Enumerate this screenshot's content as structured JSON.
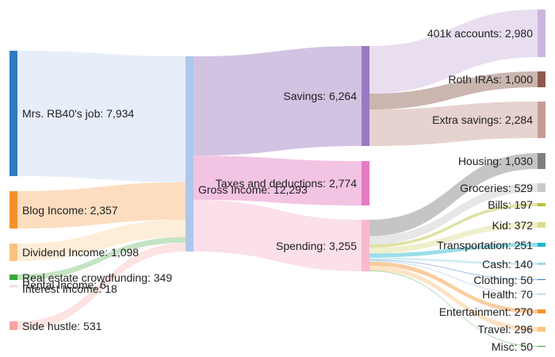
{
  "chart_data": {
    "type": "sankey",
    "title": "",
    "nodes": [
      {
        "id": "job",
        "label": "Mrs. RB40's job",
        "value": 7934,
        "color": "#2f7bbf"
      },
      {
        "id": "blog",
        "label": "Blog Income",
        "value": 2357,
        "color": "#f5902c"
      },
      {
        "id": "div",
        "label": "Dividend Income",
        "value": 1098,
        "color": "#fbc27f"
      },
      {
        "id": "re",
        "label": "Real estate crowdfunding",
        "value": 349,
        "color": "#3aa63a"
      },
      {
        "id": "rent",
        "label": "Rental Income",
        "value": 6,
        "color": "#c6d9f0"
      },
      {
        "id": "int",
        "label": "Interest Income",
        "value": 18,
        "color": "#f4b8c2"
      },
      {
        "id": "side",
        "label": "Side hustle",
        "value": 531,
        "color": "#f9a3a0"
      },
      {
        "id": "gross",
        "label": "Gross Income",
        "value": 12293,
        "color": "#aec7ea"
      },
      {
        "id": "sav",
        "label": "Savings",
        "value": 6264,
        "color": "#9b79c2"
      },
      {
        "id": "tax",
        "label": "Taxes and deductions",
        "value": 2774,
        "color": "#e57bc2"
      },
      {
        "id": "spend",
        "label": "Spending",
        "value": 3255,
        "color": "#f7b9d0"
      },
      {
        "id": "k401",
        "label": "401k accounts",
        "value": 2980,
        "color": "#cbb5dd"
      },
      {
        "id": "roth",
        "label": "Roth IRAs",
        "value": 1000,
        "color": "#8c5a4e"
      },
      {
        "id": "extra",
        "label": "Extra savings",
        "value": 2284,
        "color": "#c79c93"
      },
      {
        "id": "housing",
        "label": "Housing",
        "value": 1030,
        "color": "#7f7f7f"
      },
      {
        "id": "groc",
        "label": "Groceries",
        "value": 529,
        "color": "#c9c9c9"
      },
      {
        "id": "bills",
        "label": "Bills",
        "value": 197,
        "color": "#bcbd3a"
      },
      {
        "id": "kid",
        "label": "Kid",
        "value": 372,
        "color": "#dbdb8d"
      },
      {
        "id": "trans",
        "label": "Transportation",
        "value": 251,
        "color": "#1fb6cc"
      },
      {
        "id": "cash",
        "label": "Cash",
        "value": 140,
        "color": "#9ddae5"
      },
      {
        "id": "cloth",
        "label": "Clothing",
        "value": 50,
        "color": "#2f7bbf"
      },
      {
        "id": "health",
        "label": "Health",
        "value": 70,
        "color": "#aec7ea"
      },
      {
        "id": "ent",
        "label": "Entertainment",
        "value": 270,
        "color": "#f5902c"
      },
      {
        "id": "travel",
        "label": "Travel",
        "value": 296,
        "color": "#fbc27f"
      },
      {
        "id": "misc",
        "label": "Misc",
        "value": 50,
        "color": "#3aa63a"
      }
    ],
    "links": [
      {
        "source": "job",
        "target": "gross",
        "value": 7934
      },
      {
        "source": "blog",
        "target": "gross",
        "value": 2357
      },
      {
        "source": "div",
        "target": "gross",
        "value": 1098
      },
      {
        "source": "re",
        "target": "gross",
        "value": 349
      },
      {
        "source": "rent",
        "target": "gross",
        "value": 6
      },
      {
        "source": "int",
        "target": "gross",
        "value": 18
      },
      {
        "source": "side",
        "target": "gross",
        "value": 531
      },
      {
        "source": "gross",
        "target": "sav",
        "value": 6264
      },
      {
        "source": "gross",
        "target": "tax",
        "value": 2774
      },
      {
        "source": "gross",
        "target": "spend",
        "value": 3255
      },
      {
        "source": "sav",
        "target": "k401",
        "value": 2980
      },
      {
        "source": "sav",
        "target": "roth",
        "value": 1000
      },
      {
        "source": "sav",
        "target": "extra",
        "value": 2284
      },
      {
        "source": "spend",
        "target": "housing",
        "value": 1030
      },
      {
        "source": "spend",
        "target": "groc",
        "value": 529
      },
      {
        "source": "spend",
        "target": "bills",
        "value": 197
      },
      {
        "source": "spend",
        "target": "kid",
        "value": 372
      },
      {
        "source": "spend",
        "target": "trans",
        "value": 251
      },
      {
        "source": "spend",
        "target": "cash",
        "value": 140
      },
      {
        "source": "spend",
        "target": "cloth",
        "value": 50
      },
      {
        "source": "spend",
        "target": "health",
        "value": 70
      },
      {
        "source": "spend",
        "target": "ent",
        "value": 270
      },
      {
        "source": "spend",
        "target": "travel",
        "value": 296
      },
      {
        "source": "spend",
        "target": "misc",
        "value": 50
      }
    ]
  }
}
